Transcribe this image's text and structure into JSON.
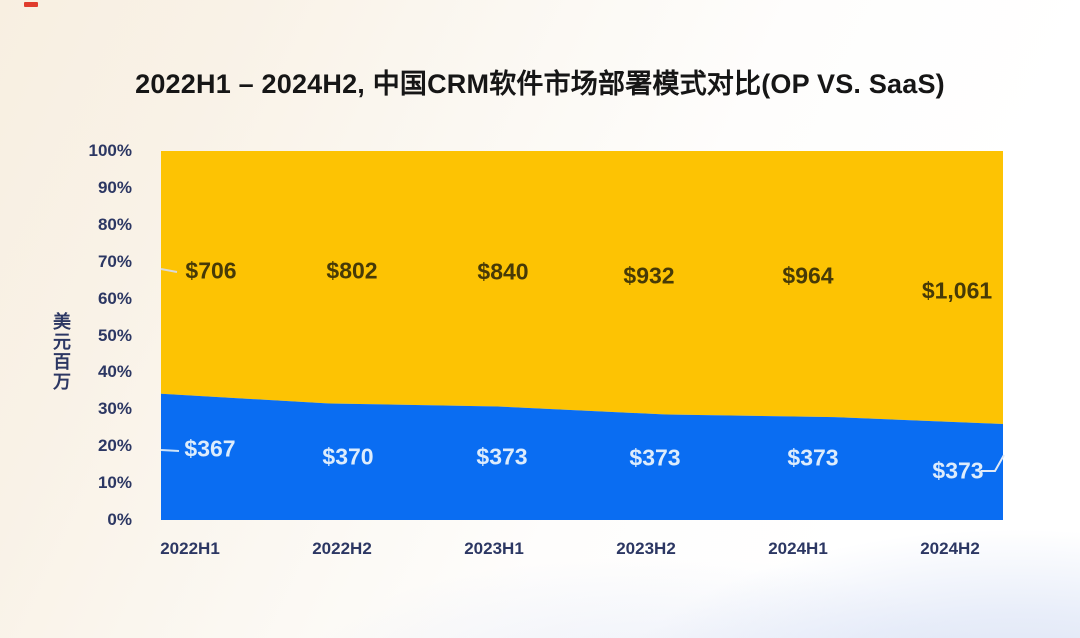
{
  "page": {
    "title": "2022H1 – 2024H2, 中国CRM软件市场部署模式对比(OP VS. SaaS)"
  },
  "chart_data": {
    "type": "area",
    "subtype": "100-percent-stacked-area",
    "title": "2022H1 – 2024H2, 中国CRM软件市场部署模式对比(OP VS. SaaS)",
    "xlabel": "",
    "ylabel": "美元百万",
    "ylim": [
      "0%",
      "100%"
    ],
    "grid": false,
    "legend": "none",
    "categories": [
      "2022H1",
      "2022H2",
      "2023H1",
      "2023H2",
      "2024H1",
      "2024H2"
    ],
    "y_ticks": [
      "100%",
      "90%",
      "80%",
      "70%",
      "60%",
      "50%",
      "40%",
      "30%",
      "20%",
      "10%",
      "0%"
    ],
    "series": [
      {
        "id": "blue-bottom-area",
        "color": "#0a6df2",
        "values": [
          367,
          370,
          373,
          373,
          373,
          373
        ],
        "labels": [
          "$367",
          "$370",
          "$373",
          "$373",
          "$373",
          "$373"
        ]
      },
      {
        "id": "yellow-top-area",
        "color": "#fdc303",
        "values": [
          706,
          802,
          840,
          932,
          964,
          1061
        ],
        "labels": [
          "$706",
          "$802",
          "$840",
          "$932",
          "$964",
          "$1,061"
        ]
      }
    ]
  },
  "colors": {
    "yellow_area": "#fdc303",
    "blue_area": "#0a6df2",
    "axis_text": "#2c3763",
    "title_text": "#161616",
    "label_on_yellow": "#473a07",
    "label_on_blue": "#ddecfc",
    "background_cream": "#f8efe1",
    "bottom_wave": "#d8e0f2",
    "red_mark": "#e03c2d"
  }
}
